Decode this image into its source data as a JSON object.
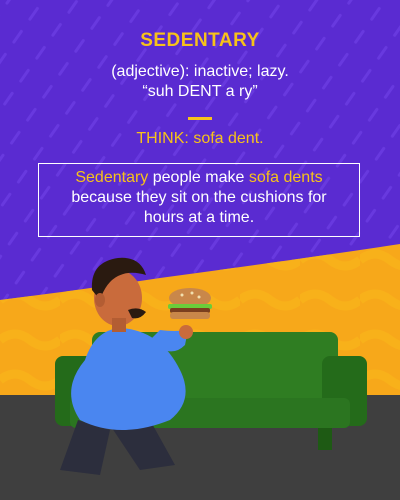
{
  "header": {
    "word": "SEDENTARY",
    "part_of_speech": "(adjective): inactive; lazy.",
    "pronunciation": "“suh DENT a ry”"
  },
  "mnemonic": {
    "label": "THINK:",
    "text": "sofa dent."
  },
  "example": {
    "word": "Sedentary",
    "part1": " people make ",
    "highlight": "sofa dents",
    "line2": "because they sit on the cushions for",
    "line3": "hours at a time."
  },
  "colors": {
    "background": "#5a2bd1",
    "accent": "#f7c21a",
    "text": "#ffffff",
    "couch": "#2f7d22",
    "floor": "#3f3f3f",
    "shirt": "#4a86f0"
  },
  "illustration": {
    "scene": "man-on-couch-eating-burger"
  }
}
